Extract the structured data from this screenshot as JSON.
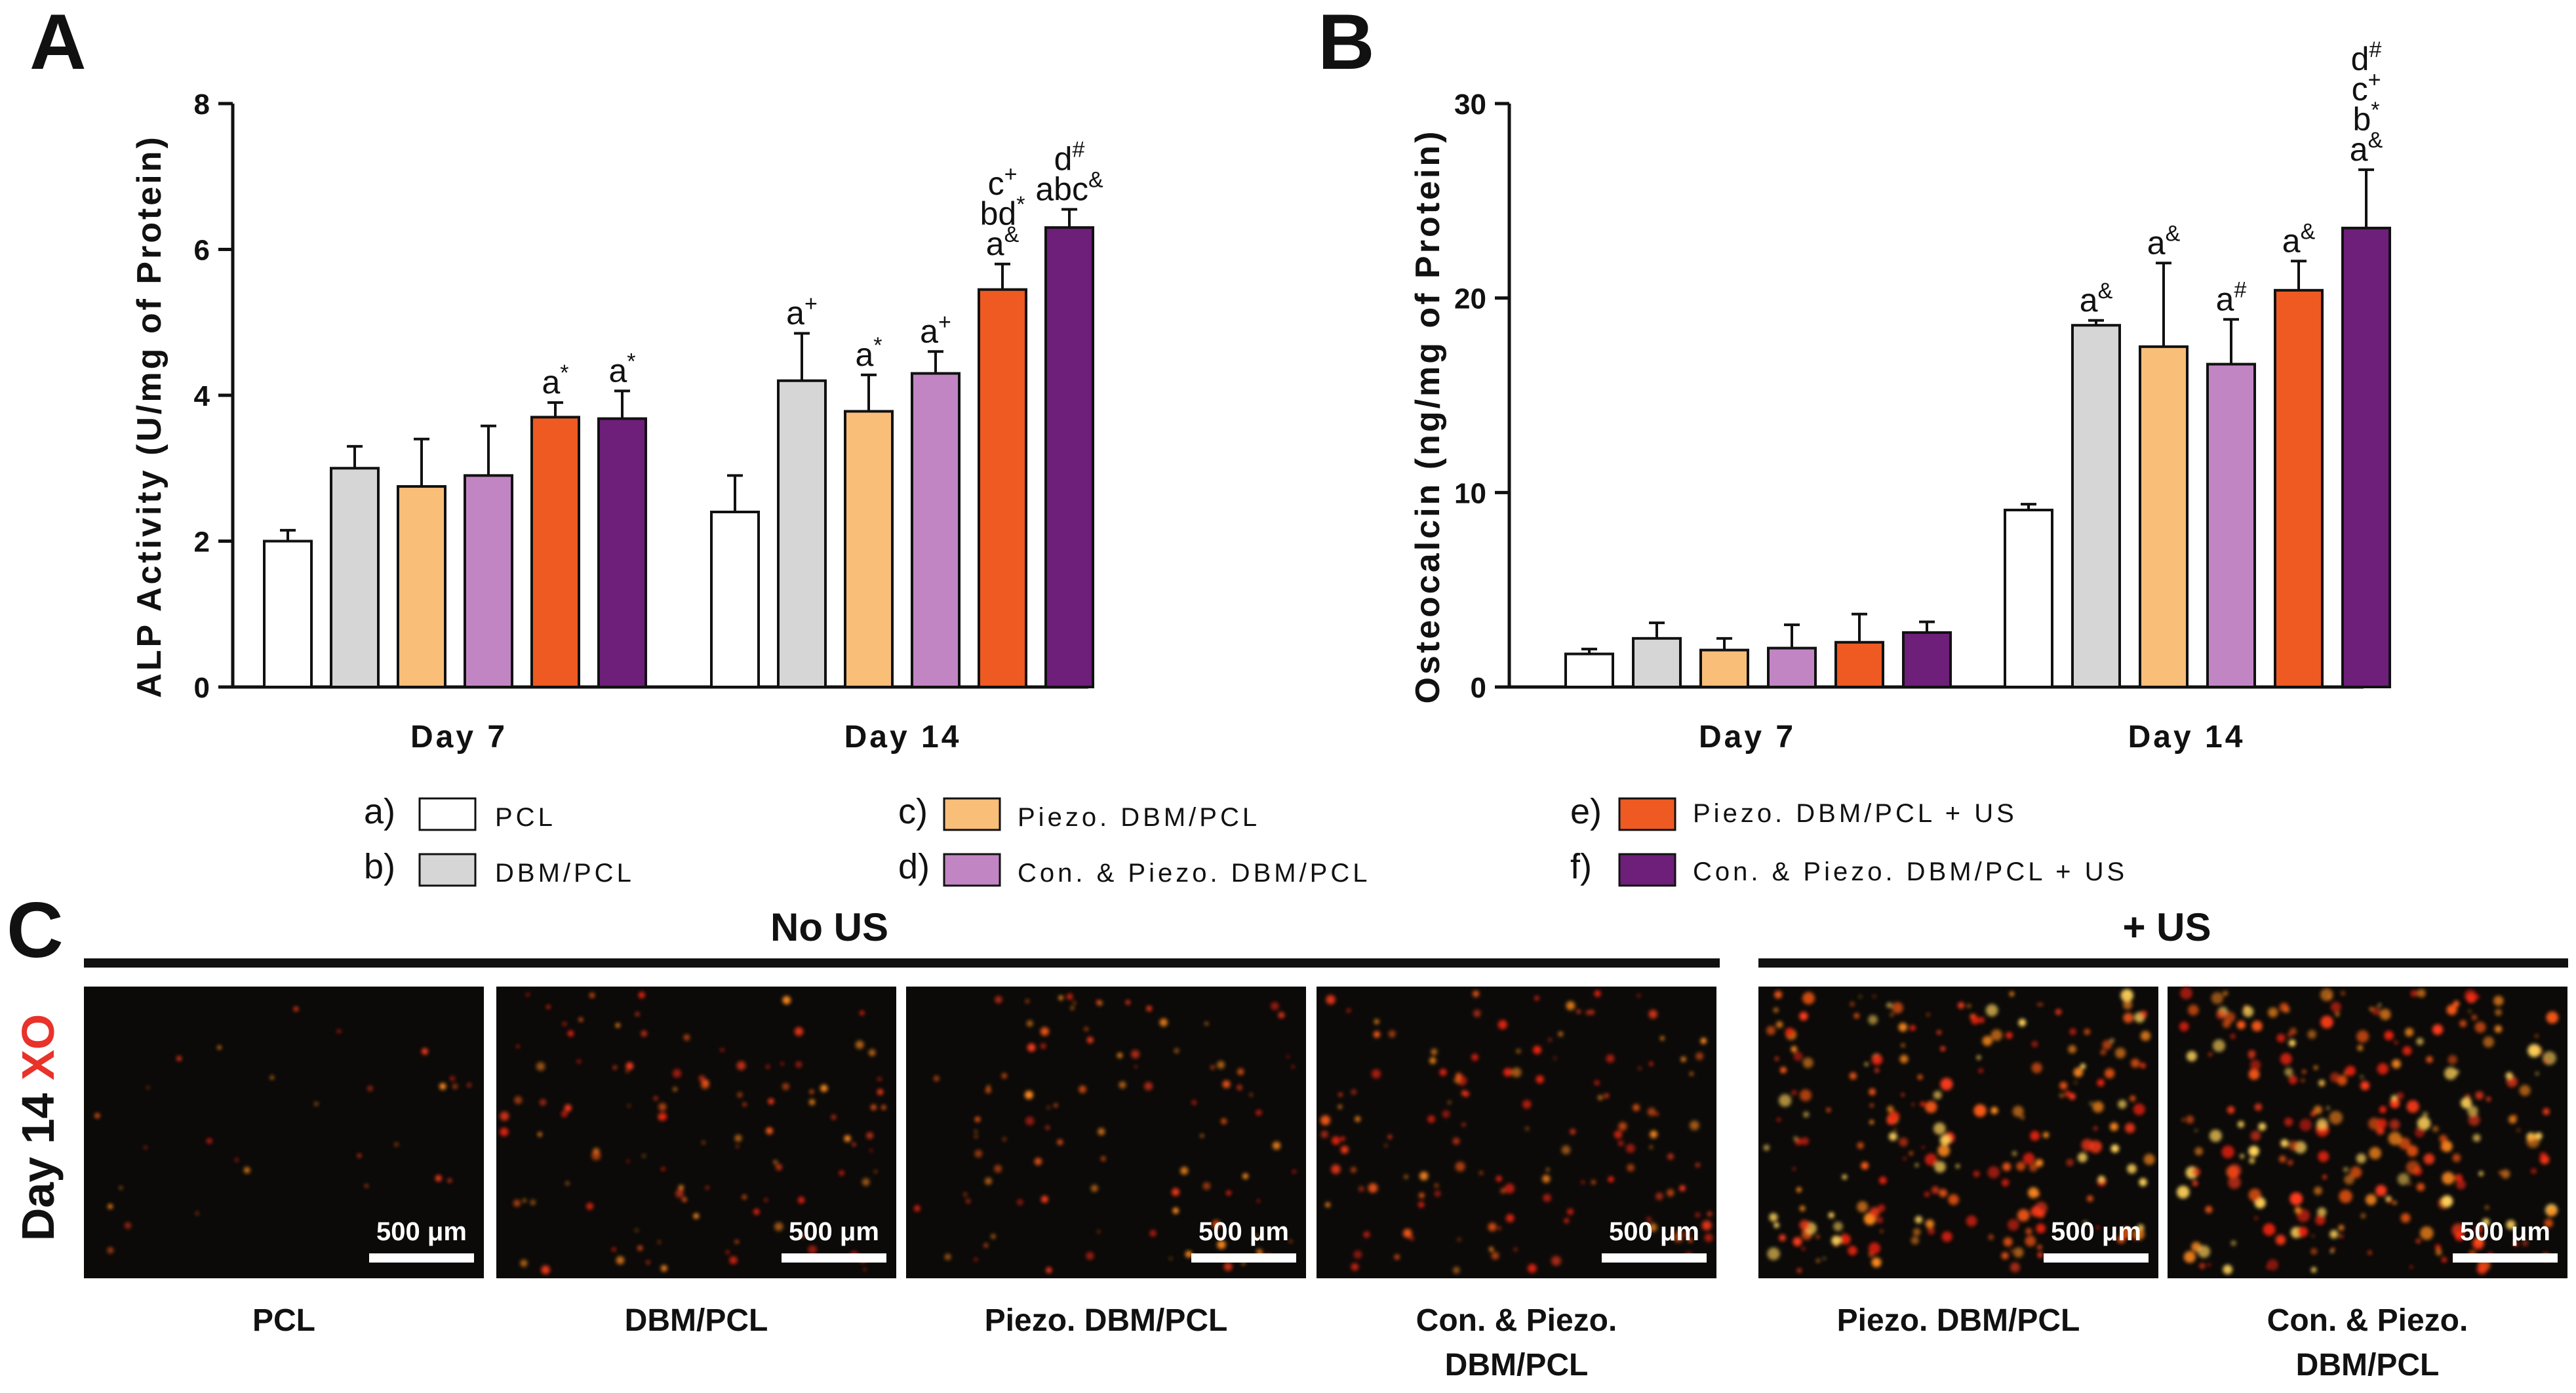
{
  "panels": {
    "a_letter": "A",
    "b_letter": "B",
    "c_letter": "C"
  },
  "colors": {
    "PCL": "#ffffff",
    "DBM/PCL": "#d6d6d6",
    "Piezo. DBM/PCL": "#f9be78",
    "Con. & Piezo. DBM/PCL": "#c285c3",
    "Piezo. DBM/PCL + US": "#ee5a22",
    "Con. & Piezo. DBM/PCL + US": "#6e1f7a",
    "stain_red": "#e8322a",
    "micrograph_bg": "#0b0a09"
  },
  "chart_data": [
    {
      "id": "A",
      "type": "bar",
      "title": "",
      "xlabel": "",
      "ylabel": "ALP Activity (U/mg of Protein)",
      "ylim": [
        0,
        8
      ],
      "yticks": [
        "0",
        "2",
        "4",
        "6",
        "8"
      ],
      "categories": [
        "Day 7",
        "Day 14"
      ],
      "series": [
        {
          "name": "PCL",
          "values": [
            2.0,
            2.4
          ],
          "errors": [
            0.15,
            0.5
          ],
          "labels": [
            [],
            []
          ]
        },
        {
          "name": "DBM/PCL",
          "values": [
            3.0,
            4.2
          ],
          "errors": [
            0.3,
            0.65
          ],
          "labels": [
            [],
            [
              [
                "a",
                "+"
              ]
            ]
          ]
        },
        {
          "name": "Piezo. DBM/PCL",
          "values": [
            2.75,
            3.78
          ],
          "errors": [
            0.65,
            0.5
          ],
          "labels": [
            [],
            [
              [
                "a",
                "*"
              ]
            ]
          ]
        },
        {
          "name": "Con. & Piezo. DBM/PCL",
          "values": [
            2.9,
            4.3
          ],
          "errors": [
            0.68,
            0.3
          ],
          "labels": [
            [],
            [
              [
                "a",
                "+"
              ]
            ]
          ]
        },
        {
          "name": "Piezo. DBM/PCL + US",
          "values": [
            3.7,
            5.45
          ],
          "errors": [
            0.2,
            0.35
          ],
          "labels": [
            [
              [
                "a",
                "*"
              ]
            ],
            [
              [
                "a",
                "&"
              ],
              [
                "bd",
                "*"
              ],
              [
                "c",
                "+"
              ]
            ]
          ]
        },
        {
          "name": "Con. & Piezo. DBM/PCL + US",
          "values": [
            3.68,
            6.3
          ],
          "errors": [
            0.38,
            0.25
          ],
          "labels": [
            [
              [
                "a",
                "*"
              ]
            ],
            [
              [
                "abc",
                "&"
              ],
              [
                "d",
                "#"
              ]
            ]
          ]
        }
      ]
    },
    {
      "id": "B",
      "type": "bar",
      "title": "",
      "xlabel": "",
      "ylabel": "Osteocalcin (ng/mg of Protein)",
      "ylim": [
        0,
        30
      ],
      "yticks": [
        "0",
        "10",
        "20",
        "30"
      ],
      "categories": [
        "Day 7",
        "Day 14"
      ],
      "series": [
        {
          "name": "PCL",
          "values": [
            1.7,
            9.1
          ],
          "errors": [
            0.25,
            0.3
          ],
          "labels": [
            [],
            []
          ]
        },
        {
          "name": "DBM/PCL",
          "values": [
            2.5,
            18.6
          ],
          "errors": [
            0.8,
            0.25
          ],
          "labels": [
            [],
            [
              [
                "a",
                "&"
              ]
            ]
          ]
        },
        {
          "name": "Piezo. DBM/PCL",
          "values": [
            1.9,
            17.5
          ],
          "errors": [
            0.6,
            4.3
          ],
          "labels": [
            [],
            [
              [
                "a",
                "&"
              ]
            ]
          ]
        },
        {
          "name": "Con. & Piezo. DBM/PCL",
          "values": [
            2.0,
            16.6
          ],
          "errors": [
            1.2,
            2.3
          ],
          "labels": [
            [],
            [
              [
                "a",
                "#"
              ]
            ]
          ]
        },
        {
          "name": "Piezo. DBM/PCL + US",
          "values": [
            2.3,
            20.4
          ],
          "errors": [
            1.45,
            1.5
          ],
          "labels": [
            [],
            [
              [
                "a",
                "&"
              ]
            ]
          ]
        },
        {
          "name": "Con. & Piezo. DBM/PCL + US",
          "values": [
            2.8,
            23.6
          ],
          "errors": [
            0.55,
            3.0
          ],
          "labels": [
            [],
            [
              [
                "a",
                "&"
              ],
              [
                "b",
                "*"
              ],
              [
                "c",
                "+"
              ],
              [
                "d",
                "#"
              ]
            ]
          ]
        }
      ]
    }
  ],
  "legend": [
    {
      "letter": "a)",
      "name": "PCL"
    },
    {
      "letter": "b)",
      "name": "DBM/PCL"
    },
    {
      "letter": "c)",
      "name": "Piezo. DBM/PCL"
    },
    {
      "letter": "d)",
      "name": "Con. & Piezo. DBM/PCL"
    },
    {
      "letter": "e)",
      "name": "Piezo. DBM/PCL + US"
    },
    {
      "letter": "f)",
      "name": "Con. & Piezo. DBM/PCL + US"
    }
  ],
  "panel_c": {
    "group_no_us": "No US",
    "group_us": "+ US",
    "stain_label_day": "Day 14 ",
    "stain_label_xo": "XO",
    "scale_bar": "500 μm",
    "images": [
      {
        "caption_lines": [
          "PCL"
        ],
        "intensity": 0.05
      },
      {
        "caption_lines": [
          "DBM/PCL"
        ],
        "intensity": 0.35
      },
      {
        "caption_lines": [
          "Piezo. DBM/PCL"
        ],
        "intensity": 0.3
      },
      {
        "caption_lines": [
          "Con. & Piezo.",
          "DBM/PCL"
        ],
        "intensity": 0.45
      },
      {
        "caption_lines": [
          "Piezo. DBM/PCL"
        ],
        "intensity": 0.8
      },
      {
        "caption_lines": [
          "Con. & Piezo.",
          "DBM/PCL"
        ],
        "intensity": 0.9
      }
    ]
  }
}
